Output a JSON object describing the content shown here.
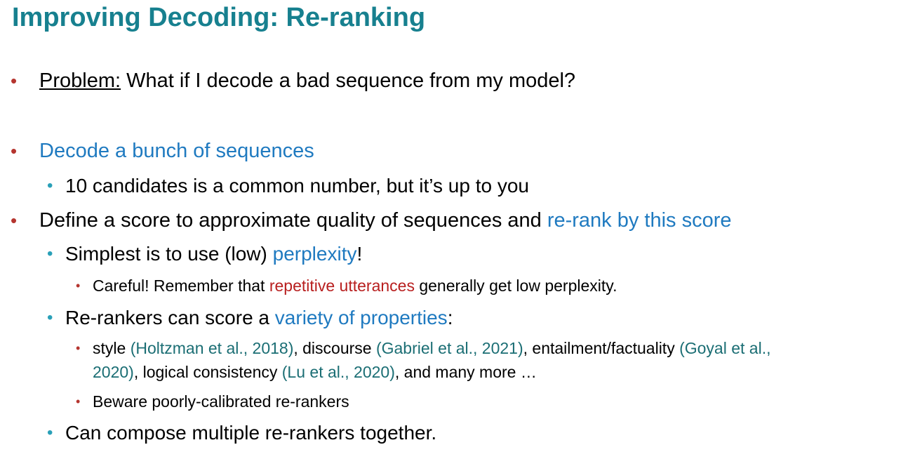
{
  "slide": {
    "title": "Improving Decoding: Re-ranking",
    "bullet1": {
      "label": "Problem:",
      "text": " What if I decode a bad sequence from my model?"
    },
    "bullet2": {
      "text": "Decode a bunch of sequences",
      "sub1": "10 candidates is a common number, but it’s up to you"
    },
    "bullet3": {
      "text_a": "Define a score to approximate quality of sequences and ",
      "text_b": "re-rank by this score",
      "sub1": {
        "text_a": "Simplest is to use (low) ",
        "text_b": "perplexity",
        "text_c": "!",
        "note": {
          "text_a": "Careful! Remember that ",
          "text_b": "repetitive utterances",
          "text_c": " generally get low perplexity."
        }
      },
      "sub2": {
        "text_a": "Re-rankers can score a ",
        "text_b": "variety of properties",
        "text_c": ":",
        "note1": {
          "a": "style ",
          "b": "(Holtzman et al., 2018)",
          "c": ", discourse ",
          "d": "(Gabriel et al., 2021)",
          "e": ", entailment/factuality ",
          "f": "(Goyal et al.,",
          "g": "2020)",
          "h": ", logical consistency ",
          "i": "(Lu et al., 2020)",
          "j": ", and many more …"
        },
        "note2": "Beware poorly-calibrated re-rankers"
      },
      "sub3": "Can compose multiple re-rankers together."
    },
    "bullet_glyph": "•"
  }
}
